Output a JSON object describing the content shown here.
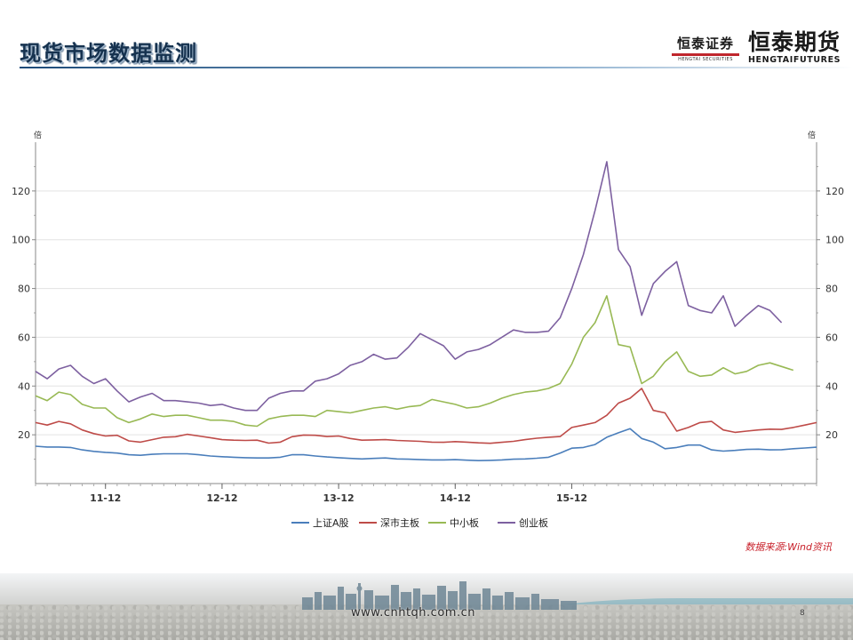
{
  "slide": {
    "title": "现货市场数据监测",
    "logo_securities_cn": "恒泰证券",
    "logo_securities_en": "HENGTAI SECURITIES",
    "logo_futures_cn": "恒泰期货",
    "logo_futures_en": "HENGTAIFUTURES",
    "source": "数据来源:Wind资讯",
    "footer_url": "www.cnhtqh.com.cn",
    "page_number": "8"
  },
  "colors": {
    "title": "#16324f",
    "series": [
      "#4a7ebb",
      "#be4b48",
      "#98b954",
      "#7d60a0"
    ],
    "source": "#c8202a"
  },
  "chart_data": {
    "type": "line",
    "y_unit_left": "倍",
    "y_unit_right": "倍",
    "ylim": [
      0,
      140
    ],
    "yticks": [
      20,
      40,
      60,
      80,
      100,
      120
    ],
    "grid": "horizontal",
    "legend_position": "bottom",
    "x_tick_labels": [
      "11-12",
      "12-12",
      "13-12",
      "14-12",
      "15-12"
    ],
    "x_tick_index": [
      6,
      16,
      26,
      36,
      46
    ],
    "series": [
      {
        "name": "上证A股",
        "values": [
          15.3,
          15.0,
          15.0,
          14.8,
          13.8,
          13.2,
          12.8,
          12.5,
          11.8,
          11.6,
          12.0,
          12.2,
          12.2,
          12.2,
          11.8,
          11.3,
          11.0,
          10.8,
          10.6,
          10.5,
          10.5,
          10.8,
          11.8,
          11.8,
          11.3,
          10.9,
          10.6,
          10.3,
          10.1,
          10.3,
          10.5,
          10.1,
          10.0,
          9.8,
          9.7,
          9.7,
          9.8,
          9.6,
          9.4,
          9.5,
          9.7,
          10.0,
          10.1,
          10.4,
          10.8,
          12.5,
          14.5,
          14.8,
          16.0,
          19.0,
          20.8,
          22.5,
          18.5,
          17.0,
          14.3,
          14.8,
          15.8,
          15.8,
          13.8,
          13.3,
          13.6,
          14.0,
          14.1,
          13.8,
          13.9,
          14.3,
          14.6,
          14.9
        ]
      },
      {
        "name": "深市主板",
        "values": [
          25.0,
          24.0,
          25.5,
          24.5,
          22.0,
          20.5,
          19.5,
          19.8,
          17.5,
          17.0,
          18.0,
          19.0,
          19.2,
          20.2,
          19.5,
          18.8,
          18.0,
          17.8,
          17.7,
          17.8,
          16.6,
          17.0,
          19.2,
          19.9,
          19.8,
          19.3,
          19.5,
          18.5,
          17.8,
          17.9,
          18.0,
          17.7,
          17.5,
          17.3,
          17.0,
          16.9,
          17.2,
          17.0,
          16.7,
          16.5,
          16.9,
          17.3,
          18.0,
          18.6,
          19.0,
          19.3,
          23.0,
          24.0,
          25.0,
          28.0,
          33.0,
          35.0,
          39.0,
          30.0,
          29.0,
          21.5,
          23.0,
          25.0,
          25.5,
          22.0,
          21.0,
          21.5,
          22.0,
          22.3,
          22.2,
          23.0,
          24.0,
          25.0
        ]
      },
      {
        "name": "中小板",
        "values": [
          36.0,
          34.0,
          37.5,
          36.5,
          32.5,
          31.0,
          31.0,
          27.0,
          25.0,
          26.5,
          28.5,
          27.5,
          28.0,
          28.0,
          27.0,
          26.0,
          26.0,
          25.5,
          24.0,
          23.5,
          26.5,
          27.5,
          28.0,
          28.0,
          27.5,
          30.0,
          29.5,
          29.0,
          30.0,
          31.0,
          31.5,
          30.5,
          31.5,
          32.0,
          34.5,
          33.5,
          32.5,
          31.0,
          31.5,
          33.0,
          35.0,
          36.5,
          37.5,
          38.0,
          39.0,
          41.0,
          49.0,
          60.0,
          66.0,
          77.0,
          57.0,
          56.0,
          41.0,
          44.0,
          50.0,
          54.0,
          46.0,
          44.0,
          44.5,
          47.5,
          45.0,
          46.0,
          48.5,
          49.5,
          48.0,
          46.5
        ]
      },
      {
        "name": "创业板",
        "values": [
          46.0,
          43.0,
          47.0,
          48.5,
          44.0,
          41.0,
          43.0,
          38.0,
          33.5,
          35.5,
          37.0,
          34.0,
          34.0,
          33.5,
          33.0,
          32.0,
          32.5,
          31.0,
          30.0,
          30.0,
          35.0,
          37.0,
          38.0,
          38.0,
          42.0,
          43.0,
          45.0,
          48.5,
          50.0,
          53.0,
          51.0,
          51.5,
          56.0,
          61.5,
          59.0,
          56.5,
          51.0,
          54.0,
          55.0,
          57.0,
          60.0,
          63.0,
          62.0,
          62.0,
          62.5,
          68.0,
          80.0,
          94.0,
          112.0,
          132.0,
          96.0,
          89.0,
          69.0,
          82.0,
          87.0,
          91.0,
          73.0,
          71.0,
          70.0,
          77.0,
          64.5,
          69.0,
          73.0,
          71.0,
          66.0
        ]
      }
    ]
  }
}
